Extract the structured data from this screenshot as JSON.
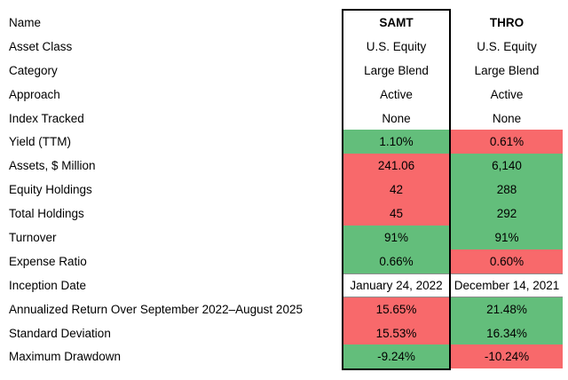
{
  "colors": {
    "positive": "#63be7b",
    "negative": "#f8696b",
    "border": "#000000",
    "text": "#000000",
    "background": "#ffffff"
  },
  "chart_data": {
    "type": "table",
    "columns": [
      "SAMT",
      "THRO"
    ],
    "legend": "green fill = favorable metric, red fill = unfavorable metric",
    "rows": [
      {
        "label": "Name",
        "samt": {
          "text": "SAMT",
          "state": "none"
        },
        "thro": {
          "text": "THRO",
          "state": "none"
        }
      },
      {
        "label": "Asset Class",
        "samt": {
          "text": "U.S. Equity",
          "state": "none"
        },
        "thro": {
          "text": "U.S. Equity",
          "state": "none"
        }
      },
      {
        "label": "Category",
        "samt": {
          "text": "Large Blend",
          "state": "none"
        },
        "thro": {
          "text": "Large Blend",
          "state": "none"
        }
      },
      {
        "label": "Approach",
        "samt": {
          "text": "Active",
          "state": "none"
        },
        "thro": {
          "text": "Active",
          "state": "none"
        }
      },
      {
        "label": "Index Tracked",
        "samt": {
          "text": "None",
          "state": "none"
        },
        "thro": {
          "text": "None",
          "state": "none"
        }
      },
      {
        "label": "Yield (TTM)",
        "samt": {
          "text": "1.10%",
          "state": "positive"
        },
        "thro": {
          "text": "0.61%",
          "state": "negative"
        }
      },
      {
        "label": "Assets, $ Million",
        "samt": {
          "text": "241.06",
          "state": "negative"
        },
        "thro": {
          "text": "6,140",
          "state": "positive"
        }
      },
      {
        "label": "Equity Holdings",
        "samt": {
          "text": "42",
          "state": "negative"
        },
        "thro": {
          "text": "288",
          "state": "positive"
        }
      },
      {
        "label": "Total Holdings",
        "samt": {
          "text": "45",
          "state": "negative"
        },
        "thro": {
          "text": "292",
          "state": "positive"
        }
      },
      {
        "label": "Turnover",
        "samt": {
          "text": "91%",
          "state": "positive"
        },
        "thro": {
          "text": "91%",
          "state": "positive"
        }
      },
      {
        "label": "Expense Ratio",
        "samt": {
          "text": "0.66%",
          "state": "positive"
        },
        "thro": {
          "text": "0.60%",
          "state": "negative"
        }
      },
      {
        "label": "Inception Date",
        "samt": {
          "text": "January 24, 2022",
          "state": "none"
        },
        "thro": {
          "text": "December 14, 2021",
          "state": "none"
        }
      },
      {
        "label": "Annualized Return Over September 2022–August 2025",
        "samt": {
          "text": "15.65%",
          "state": "negative"
        },
        "thro": {
          "text": "21.48%",
          "state": "positive"
        }
      },
      {
        "label": "Standard Deviation",
        "samt": {
          "text": "15.53%",
          "state": "negative"
        },
        "thro": {
          "text": "16.34%",
          "state": "positive"
        }
      },
      {
        "label": "Maximum Drawdown",
        "samt": {
          "text": "-9.24%",
          "state": "positive"
        },
        "thro": {
          "text": "-10.24%",
          "state": "negative"
        }
      }
    ]
  }
}
